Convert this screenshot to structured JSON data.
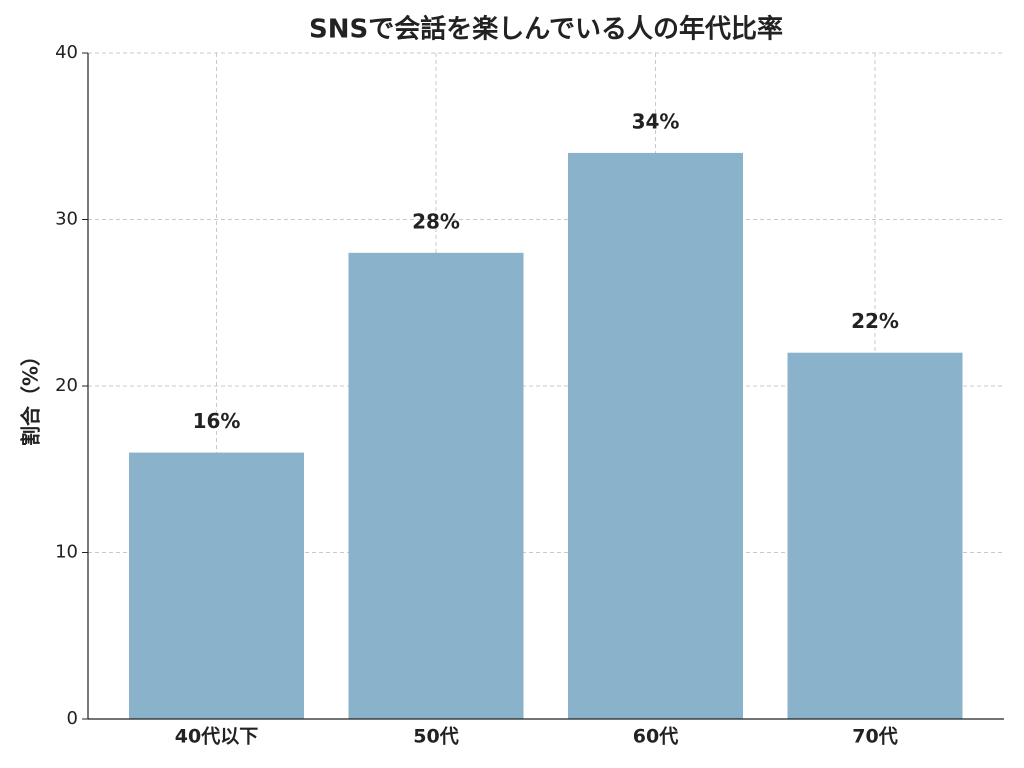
{
  "chart_data": {
    "type": "bar",
    "title": "SNSで会話を楽しんでいる人の年代比率",
    "ylabel": "割合（%）",
    "categories": [
      "40代以下",
      "50代",
      "60代",
      "70代"
    ],
    "values": [
      16,
      28,
      34,
      22
    ],
    "value_labels": [
      "16%",
      "28%",
      "34%",
      "22%"
    ],
    "color": "#8ab2cb",
    "ylim": [
      0,
      40
    ],
    "yticks": [
      0,
      10,
      20,
      30,
      40
    ],
    "grid": true
  }
}
